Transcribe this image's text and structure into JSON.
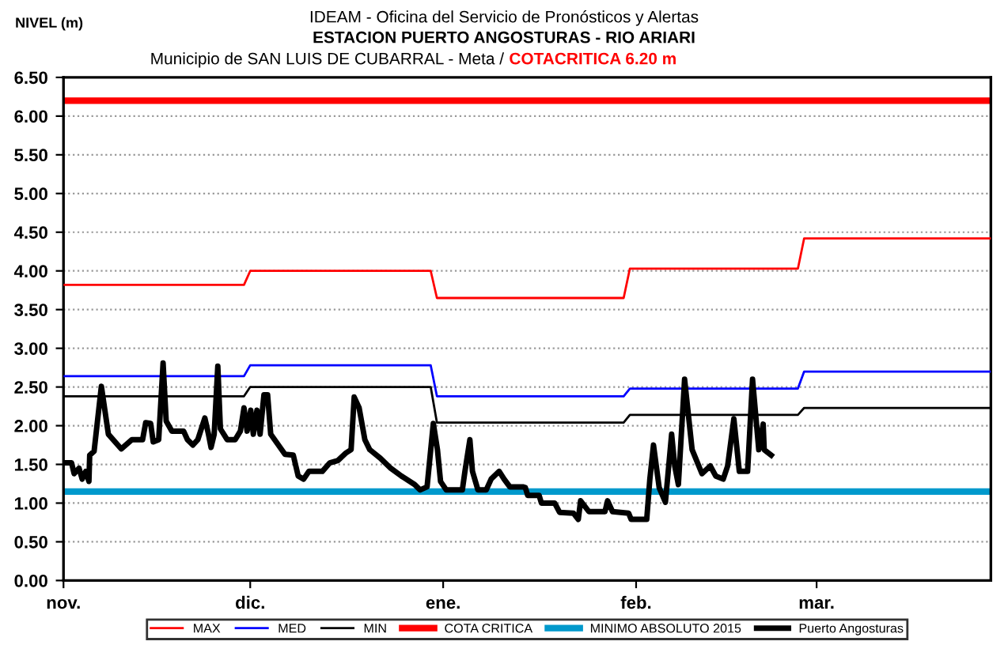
{
  "chart_data": {
    "type": "line",
    "title": "IDEAM - Oficina del Servicio de Pronósticos y Alertas",
    "subtitle": "ESTACION PUERTO ANGOSTURAS - RIO ARIARI",
    "annotations": [
      "Municipio de SAN LUIS DE CUBARRAL - Meta /",
      "COTACRITICA 6.20 m"
    ],
    "ylabel": "NIVEL (m)",
    "xlim": [
      "2015-11-01",
      "2016-03-29"
    ],
    "xticks": [
      {
        "value": "2015-11-01",
        "label": "nov."
      },
      {
        "value": "2015-12-01",
        "label": "dic."
      },
      {
        "value": "2016-01-01",
        "label": "ene."
      },
      {
        "value": "2016-02-01",
        "label": "feb."
      },
      {
        "value": "2016-03-01",
        "label": "mar."
      }
    ],
    "ylim": [
      0,
      6.5
    ],
    "yticks": [
      {
        "value": 0,
        "label": "0.00"
      },
      {
        "value": 0.5,
        "label": "0.50"
      },
      {
        "value": 1,
        "label": "1.00"
      },
      {
        "value": 1.5,
        "label": "1.50"
      },
      {
        "value": 2,
        "label": "2.00"
      },
      {
        "value": 2.5,
        "label": "2.50"
      },
      {
        "value": 3,
        "label": "3.00"
      },
      {
        "value": 3.5,
        "label": "3.50"
      },
      {
        "value": 4,
        "label": "4.00"
      },
      {
        "value": 4.5,
        "label": "4.50"
      },
      {
        "value": 5,
        "label": "5.00"
      },
      {
        "value": 5.5,
        "label": "5.50"
      },
      {
        "value": 6,
        "label": "6.00"
      },
      {
        "value": 6.5,
        "label": "6.50"
      }
    ],
    "grid": "y",
    "legend": "bottom",
    "marker": "none",
    "line_style": "solid",
    "series": [
      {
        "name": "MAX",
        "color": "#ff0000",
        "x": [
          "2015-11-01",
          "2015-11-30",
          "2015-12-01",
          "2015-12-30",
          "2015-12-31",
          "2016-01-30",
          "2016-01-31",
          "2016-02-27",
          "2016-02-28",
          "2016-03-29"
        ],
        "values": [
          3.82,
          3.82,
          4.0,
          4.0,
          3.65,
          3.65,
          4.03,
          4.03,
          4.42,
          4.42
        ]
      },
      {
        "name": "MED",
        "color": "#0000ff",
        "x": [
          "2015-11-01",
          "2015-11-30",
          "2015-12-01",
          "2015-12-30",
          "2015-12-31",
          "2016-01-30",
          "2016-01-31",
          "2016-02-27",
          "2016-02-28",
          "2016-03-29"
        ],
        "values": [
          2.64,
          2.64,
          2.78,
          2.78,
          2.38,
          2.38,
          2.48,
          2.48,
          2.7,
          2.7
        ]
      },
      {
        "name": "MIN",
        "color": "#000000",
        "x": [
          "2015-11-01",
          "2015-11-30",
          "2015-12-01",
          "2015-12-30",
          "2015-12-31",
          "2016-01-30",
          "2016-01-31",
          "2016-02-27",
          "2016-02-28",
          "2016-03-29"
        ],
        "values": [
          2.38,
          2.38,
          2.5,
          2.5,
          2.04,
          2.04,
          2.14,
          2.14,
          2.23,
          2.23
        ]
      },
      {
        "name": "Puerto Angosturas",
        "color": "#000000",
        "x": [
          "2015-11-01T00:00",
          "2015-11-02T07:00",
          "2015-11-02T17:00",
          "2015-11-03T12:00",
          "2015-11-04T00:00",
          "2015-11-04T14:00",
          "2015-11-05T02:00",
          "2015-11-05T05:00",
          "2015-11-05T22:00",
          "2015-11-07T02:00",
          "2015-11-08T05:00",
          "2015-11-10T07:00",
          "2015-11-12T00:00",
          "2015-11-13T17:00",
          "2015-11-14T05:00",
          "2015-11-15T00:00",
          "2015-11-15T10:00",
          "2015-11-16T07:00",
          "2015-11-17T00:00",
          "2015-11-17T12:00",
          "2015-11-18T10:00",
          "2015-11-19T05:00",
          "2015-11-20T07:00",
          "2015-11-20T22:00",
          "2015-11-21T19:00",
          "2015-11-22T14:00",
          "2015-11-23T17:00",
          "2015-11-24T07:00",
          "2015-11-24T17:00",
          "2015-11-25T05:00",
          "2015-11-25T19:00",
          "2015-11-26T05:00",
          "2015-11-27T07:00",
          "2015-11-28T14:00",
          "2015-11-29T10:00",
          "2015-11-30T00:00",
          "2015-11-30T12:00",
          "2015-12-01T02:00",
          "2015-12-01T12:00",
          "2015-12-02T02:00",
          "2015-12-02T14:00",
          "2015-12-03T05:00",
          "2015-12-03T19:00",
          "2015-12-04T07:00",
          "2015-12-06T14:00",
          "2015-12-07T22:00",
          "2015-12-08T17:00",
          "2015-12-09T14:00",
          "2015-12-10T10:00",
          "2015-12-12T14:00",
          "2015-12-13T19:00",
          "2015-12-15T02:00",
          "2015-12-16T10:00",
          "2015-12-17T05:00",
          "2015-12-17T17:00",
          "2015-12-18T12:00",
          "2015-12-19T10:00",
          "2015-12-20T05:00",
          "2015-12-21T22:00",
          "2015-12-23T14:00",
          "2015-12-25T07:00",
          "2015-12-27T10:00",
          "2015-12-28T07:00",
          "2015-12-29T10:00",
          "2015-12-30T10:00",
          "2015-12-31T02:00",
          "2015-12-31T14:00",
          "2016-01-01T12:00",
          "2016-01-04T02:00",
          "2016-01-04T12:00",
          "2016-01-05T07:00",
          "2016-01-05T17:00",
          "2016-01-06T14:00",
          "2016-01-07T22:00",
          "2016-01-08T17:00",
          "2016-01-10T00:00",
          "2016-01-10T19:00",
          "2016-01-11T17:00",
          "2016-01-13T19:00",
          "2016-01-14T05:00",
          "2016-01-14T14:00",
          "2016-01-16T10:00",
          "2016-01-16T19:00",
          "2016-01-18T22:00",
          "2016-01-19T17:00",
          "2016-01-21T22:00",
          "2016-01-22T17:00",
          "2016-01-23T02:00",
          "2016-01-24T10:00",
          "2016-01-27T00:00",
          "2016-01-27T10:00",
          "2016-01-28T05:00",
          "2016-01-30T19:00",
          "2016-01-31T05:00",
          "2016-02-02T17:00",
          "2016-02-03T05:00",
          "2016-02-03T19:00",
          "2016-02-04T17:00",
          "2016-02-05T17:00",
          "2016-02-06T17:00",
          "2016-02-07T05:00",
          "2016-02-07T19:00",
          "2016-02-08T19:00",
          "2016-02-10T00:00",
          "2016-02-11T14:00",
          "2016-02-12T22:00",
          "2016-02-13T19:00",
          "2016-02-15T00:00",
          "2016-02-15T17:00",
          "2016-02-16T17:00",
          "2016-02-17T14:00",
          "2016-02-18T22:00",
          "2016-02-19T17:00",
          "2016-02-20T17:00",
          "2016-02-21T10:00",
          "2016-02-21T14:00",
          "2016-02-22T17:00"
        ],
        "values": [
          1.52,
          1.52,
          1.38,
          1.45,
          1.31,
          1.41,
          1.28,
          1.62,
          1.67,
          2.51,
          1.89,
          1.7,
          1.82,
          1.82,
          2.04,
          2.03,
          1.79,
          1.82,
          2.81,
          2.06,
          1.93,
          1.93,
          1.93,
          1.82,
          1.75,
          1.82,
          2.1,
          1.89,
          1.72,
          1.89,
          2.77,
          1.96,
          1.82,
          1.82,
          1.93,
          2.23,
          1.93,
          2.2,
          1.89,
          2.2,
          1.89,
          2.4,
          2.4,
          1.89,
          1.63,
          1.62,
          1.35,
          1.31,
          1.41,
          1.41,
          1.52,
          1.55,
          1.65,
          1.69,
          2.37,
          2.23,
          1.82,
          1.69,
          1.58,
          1.45,
          1.35,
          1.24,
          1.17,
          1.21,
          2.03,
          1.69,
          1.28,
          1.17,
          1.17,
          1.41,
          1.82,
          1.41,
          1.17,
          1.17,
          1.31,
          1.41,
          1.31,
          1.21,
          1.21,
          1.2,
          1.1,
          1.1,
          1.0,
          1.0,
          0.88,
          0.87,
          0.79,
          1.03,
          0.89,
          0.89,
          1.03,
          0.89,
          0.87,
          0.79,
          0.79,
          1.31,
          1.75,
          1.2,
          1.01,
          1.89,
          1.48,
          1.24,
          2.6,
          1.69,
          1.38,
          1.48,
          1.35,
          1.31,
          1.48,
          2.09,
          1.41,
          1.41,
          2.6,
          1.69,
          2.02,
          1.69,
          1.62
        ]
      }
    ],
    "ref_lines": [
      {
        "axis": "y",
        "value": 6.2,
        "label": "COTA CRITICA",
        "color": "#ff0000",
        "line_style": "solid"
      },
      {
        "axis": "y",
        "value": 1.15,
        "label": "MINIMO ABSOLUTO 2015",
        "color": "#0099cc",
        "line_style": "solid"
      }
    ]
  }
}
